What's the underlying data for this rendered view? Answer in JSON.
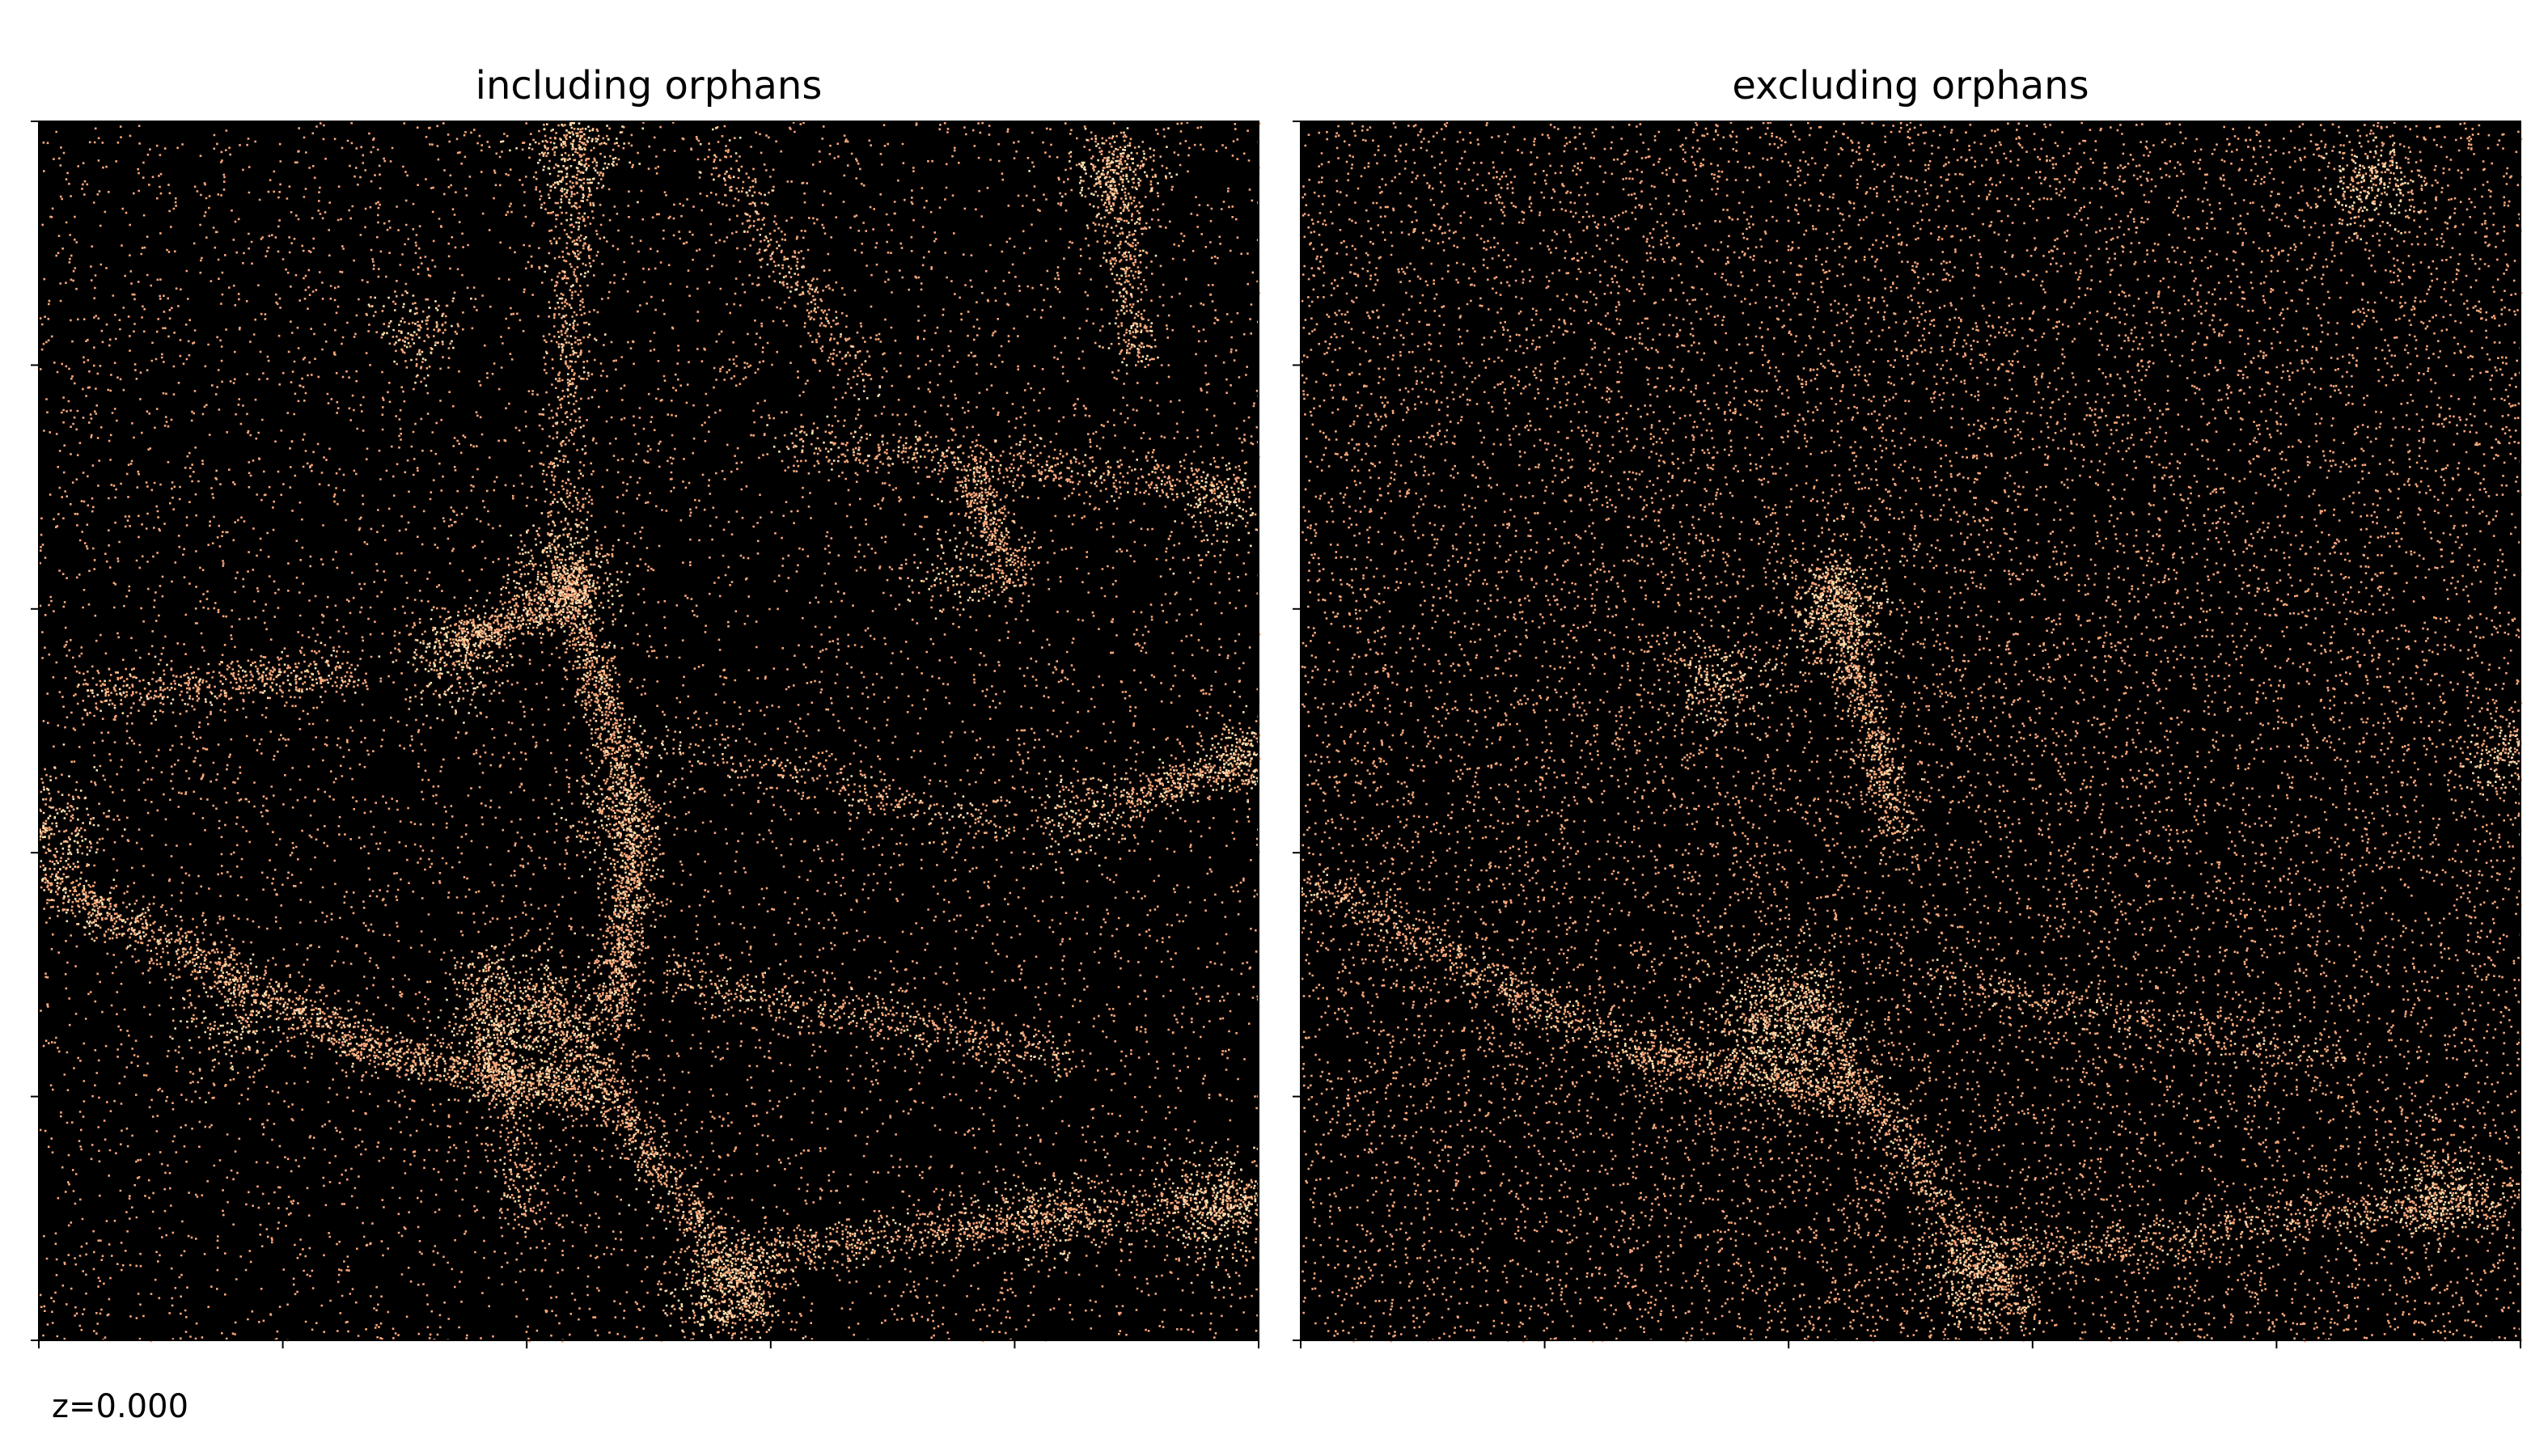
{
  "figure": {
    "redshift_label": "z=0.000"
  },
  "chart_data": [
    {
      "type": "scatter",
      "title": "including orphans",
      "xlabel": "",
      "ylabel": "",
      "xlim": [
        0,
        1
      ],
      "ylim": [
        0,
        1
      ],
      "x_ticks": [
        0,
        0.2,
        0.4,
        0.6,
        0.8,
        1.0
      ],
      "y_ticks": [
        0,
        0.2,
        0.4,
        0.6,
        0.8,
        1.0
      ],
      "tick_labels_shown": false,
      "grid": false,
      "background_color": "#000000",
      "point_color": "#f8a77a",
      "point_color_dense": "#fde0b0",
      "uniform_fraction": 0.38,
      "clusters": [
        {
          "x": 0.39,
          "y": 0.26,
          "w": 0.55
        },
        {
          "x": 0.43,
          "y": 0.63,
          "w": 0.3
        },
        {
          "x": 0.56,
          "y": 0.04,
          "w": 0.4
        },
        {
          "x": 0.97,
          "y": 0.11,
          "w": 0.35
        },
        {
          "x": 0.34,
          "y": 0.56,
          "w": 0.25
        },
        {
          "x": 0.44,
          "y": 0.98,
          "w": 0.28
        },
        {
          "x": 0.88,
          "y": 0.96,
          "w": 0.22
        },
        {
          "x": 0.99,
          "y": 0.48,
          "w": 0.22
        },
        {
          "x": 0.01,
          "y": 0.42,
          "w": 0.25
        },
        {
          "x": 0.85,
          "y": 0.43,
          "w": 0.15
        },
        {
          "x": 0.31,
          "y": 0.83,
          "w": 0.15
        },
        {
          "x": 0.16,
          "y": 0.26,
          "w": 0.18
        },
        {
          "x": 0.82,
          "y": 0.1,
          "w": 0.2
        },
        {
          "x": 0.97,
          "y": 0.69,
          "w": 0.15
        },
        {
          "x": 0.47,
          "y": 0.43,
          "w": 0.2
        },
        {
          "x": 0.75,
          "y": 0.63,
          "w": 0.12
        }
      ],
      "filaments": [
        {
          "from": [
            0.0,
            0.38
          ],
          "to": [
            0.27,
            0.24
          ],
          "w": 0.9
        },
        {
          "from": [
            0.27,
            0.24
          ],
          "to": [
            0.46,
            0.2
          ],
          "w": 0.7
        },
        {
          "from": [
            0.43,
            0.64
          ],
          "to": [
            0.49,
            0.42
          ],
          "w": 0.8
        },
        {
          "from": [
            0.49,
            0.42
          ],
          "to": [
            0.47,
            0.26
          ],
          "w": 0.7
        },
        {
          "from": [
            0.41,
            0.29
          ],
          "to": [
            0.59,
            0.02
          ],
          "w": 0.9
        },
        {
          "from": [
            0.57,
            0.07
          ],
          "to": [
            1.0,
            0.12
          ],
          "w": 0.9
        },
        {
          "from": [
            0.34,
            0.57
          ],
          "to": [
            0.45,
            0.62
          ],
          "w": 0.6
        },
        {
          "from": [
            0.44,
            0.99
          ],
          "to": [
            0.43,
            0.66
          ],
          "w": 0.5
        },
        {
          "from": [
            0.61,
            0.74
          ],
          "to": [
            0.98,
            0.7
          ],
          "w": 0.5
        },
        {
          "from": [
            0.76,
            0.72
          ],
          "to": [
            0.8,
            0.62
          ],
          "w": 0.4
        },
        {
          "from": [
            0.52,
            0.3
          ],
          "to": [
            0.85,
            0.23
          ],
          "w": 0.5
        },
        {
          "from": [
            0.88,
            0.98
          ],
          "to": [
            0.9,
            0.8
          ],
          "w": 0.4
        },
        {
          "from": [
            0.03,
            0.53
          ],
          "to": [
            0.26,
            0.55
          ],
          "w": 0.5
        },
        {
          "from": [
            0.47,
            0.5
          ],
          "to": [
            0.8,
            0.42
          ],
          "w": 0.3
        },
        {
          "from": [
            0.4,
            0.1
          ],
          "to": [
            0.36,
            0.31
          ],
          "w": 0.4
        },
        {
          "from": [
            0.88,
            0.44
          ],
          "to": [
            1.0,
            0.48
          ],
          "w": 0.4
        },
        {
          "from": [
            0.55,
            0.98
          ],
          "to": [
            0.68,
            0.78
          ],
          "w": 0.3
        }
      ]
    },
    {
      "type": "scatter",
      "title": "excluding orphans",
      "xlabel": "",
      "ylabel": "",
      "xlim": [
        0,
        1
      ],
      "ylim": [
        0,
        1
      ],
      "x_ticks": [
        0,
        0.2,
        0.4,
        0.6,
        0.8,
        1.0
      ],
      "y_ticks": [
        0,
        0.2,
        0.4,
        0.6,
        0.8,
        1.0
      ],
      "tick_labels_shown": false,
      "grid": false,
      "background_color": "#000000",
      "point_color": "#f8a77a",
      "point_color_dense": "#fde0b0",
      "uniform_fraction": 0.74,
      "clusters": [
        {
          "x": 0.39,
          "y": 0.26,
          "w": 0.55
        },
        {
          "x": 0.44,
          "y": 0.6,
          "w": 0.3
        },
        {
          "x": 0.55,
          "y": 0.05,
          "w": 0.25
        },
        {
          "x": 0.93,
          "y": 0.12,
          "w": 0.25
        },
        {
          "x": 0.88,
          "y": 0.95,
          "w": 0.18
        },
        {
          "x": 0.34,
          "y": 0.54,
          "w": 0.15
        },
        {
          "x": 0.99,
          "y": 0.48,
          "w": 0.15
        }
      ],
      "filaments": [
        {
          "from": [
            0.0,
            0.38
          ],
          "to": [
            0.27,
            0.24
          ],
          "w": 0.5
        },
        {
          "from": [
            0.27,
            0.24
          ],
          "to": [
            0.46,
            0.2
          ],
          "w": 0.4
        },
        {
          "from": [
            0.43,
            0.64
          ],
          "to": [
            0.49,
            0.42
          ],
          "w": 0.5
        },
        {
          "from": [
            0.41,
            0.29
          ],
          "to": [
            0.59,
            0.02
          ],
          "w": 0.5
        },
        {
          "from": [
            0.57,
            0.07
          ],
          "to": [
            1.0,
            0.12
          ],
          "w": 0.5
        },
        {
          "from": [
            0.52,
            0.3
          ],
          "to": [
            0.85,
            0.23
          ],
          "w": 0.3
        }
      ]
    }
  ]
}
